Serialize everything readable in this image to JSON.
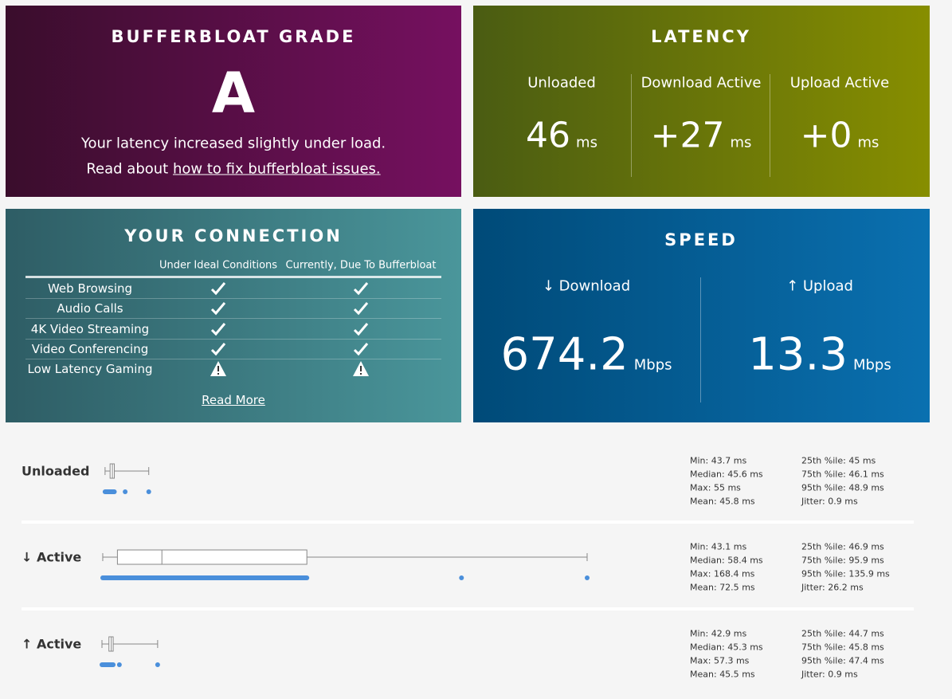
{
  "bufferbloat": {
    "title": "BUFFERBLOAT GRADE",
    "grade": "A",
    "message": "Your latency increased slightly under load.",
    "read_prefix": "Read about",
    "read_link": "how to fix bufferbloat issues."
  },
  "latency": {
    "title": "LATENCY",
    "columns": [
      {
        "label": "Unloaded",
        "value": "46",
        "unit": "ms"
      },
      {
        "label": "Download Active",
        "value": "+27",
        "unit": "ms"
      },
      {
        "label": "Upload Active",
        "value": "+0",
        "unit": "ms"
      }
    ]
  },
  "connection": {
    "title": "YOUR CONNECTION",
    "headers": [
      "Under Ideal Conditions",
      "Currently, Due To Bufferbloat"
    ],
    "rows": [
      {
        "label": "Web Browsing",
        "ideal": "ok",
        "current": "ok"
      },
      {
        "label": "Audio Calls",
        "ideal": "ok",
        "current": "ok"
      },
      {
        "label": "4K Video Streaming",
        "ideal": "ok",
        "current": "ok"
      },
      {
        "label": "Video Conferencing",
        "ideal": "ok",
        "current": "ok"
      },
      {
        "label": "Low Latency Gaming",
        "ideal": "warning",
        "current": "warning"
      }
    ],
    "read_more": "Read More"
  },
  "speed": {
    "title": "SPEED",
    "columns": [
      {
        "label": "↓ Download",
        "value": "674.2",
        "unit": "Mbps"
      },
      {
        "label": "↑ Upload",
        "value": "13.3",
        "unit": "Mbps"
      }
    ]
  },
  "latency_details": [
    {
      "label": "Unloaded",
      "stats": [
        {
          "label": "Min:",
          "value": 43.7,
          "unit": "ms"
        },
        {
          "label": "Median:",
          "value": 45.6,
          "unit": "ms"
        },
        {
          "label": "Max:",
          "value": 55,
          "unit": "ms"
        },
        {
          "label": "Mean:",
          "value": 45.8,
          "unit": "ms"
        },
        {
          "label": "25th %ile:",
          "value": 45,
          "unit": "ms"
        },
        {
          "label": "75th %ile:",
          "value": 46.1,
          "unit": "ms"
        },
        {
          "label": "95th %ile:",
          "value": 48.9,
          "unit": "ms"
        },
        {
          "label": "Jitter:",
          "value": 0.9,
          "unit": "ms"
        }
      ]
    },
    {
      "label": "↓ Active",
      "stats": [
        {
          "label": "Min:",
          "value": 43.1,
          "unit": "ms"
        },
        {
          "label": "Median:",
          "value": 58.4,
          "unit": "ms"
        },
        {
          "label": "Max:",
          "value": 168.4,
          "unit": "ms"
        },
        {
          "label": "Mean:",
          "value": 72.5,
          "unit": "ms"
        },
        {
          "label": "25th %ile:",
          "value": 46.9,
          "unit": "ms"
        },
        {
          "label": "75th %ile:",
          "value": 95.9,
          "unit": "ms"
        },
        {
          "label": "95th %ile:",
          "value": 135.9,
          "unit": "ms"
        },
        {
          "label": "Jitter:",
          "value": 26.2,
          "unit": "ms"
        }
      ]
    },
    {
      "label": "↑ Active",
      "stats": [
        {
          "label": "Min:",
          "value": 42.9,
          "unit": "ms"
        },
        {
          "label": "Median:",
          "value": 45.3,
          "unit": "ms"
        },
        {
          "label": "Max:",
          "value": 57.3,
          "unit": "ms"
        },
        {
          "label": "Mean:",
          "value": 45.5,
          "unit": "ms"
        },
        {
          "label": "25th %ile:",
          "value": 44.7,
          "unit": "ms"
        },
        {
          "label": "75th %ile:",
          "value": 45.8,
          "unit": "ms"
        },
        {
          "label": "95th %ile:",
          "value": 47.4,
          "unit": "ms"
        },
        {
          "label": "Jitter:",
          "value": 0.9,
          "unit": "ms"
        }
      ]
    }
  ]
}
